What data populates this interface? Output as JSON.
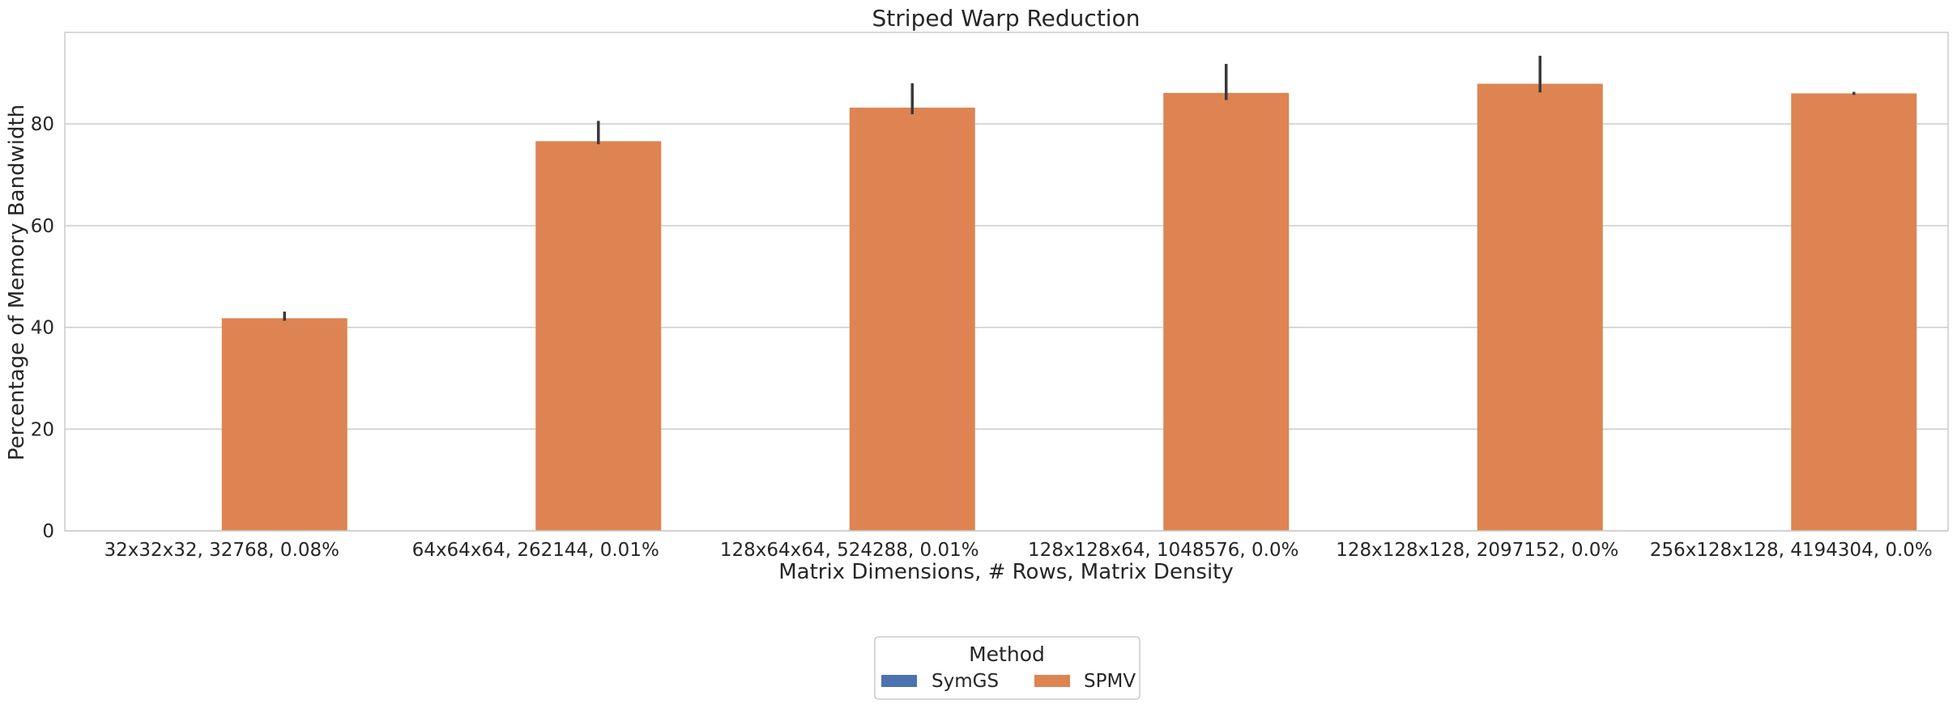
{
  "chart_data": {
    "type": "bar",
    "title": "Striped Warp Reduction",
    "xlabel": "Matrix Dimensions, # Rows, Matrix Density",
    "ylabel": "Percentage of Memory Bandwidth",
    "categories": [
      "32x32x32, 32768, 0.08%",
      "64x64x64, 262144, 0.01%",
      "128x64x64, 524288, 0.01%",
      "128x128x64, 1048576, 0.0%",
      "128x128x128, 2097152, 0.0%",
      "256x128x128, 4194304, 0.0%"
    ],
    "series": [
      {
        "name": "SymGS",
        "color": "#4c72b0",
        "values": [
          null,
          null,
          null,
          null,
          null,
          null
        ]
      },
      {
        "name": "SPMV",
        "color": "#dd8452",
        "values": [
          41.8,
          76.6,
          83.2,
          86.1,
          87.9,
          86.0
        ],
        "error_low": [
          41.3,
          76.0,
          81.9,
          84.7,
          86.2,
          85.7
        ],
        "error_high": [
          43.1,
          80.6,
          88.0,
          91.8,
          93.4,
          86.3
        ]
      }
    ],
    "ylim": [
      0,
      98
    ],
    "yticks": [
      0,
      20,
      40,
      60,
      80
    ],
    "grid": true,
    "legend": {
      "title": "Method",
      "placement": "bottom-center"
    }
  }
}
